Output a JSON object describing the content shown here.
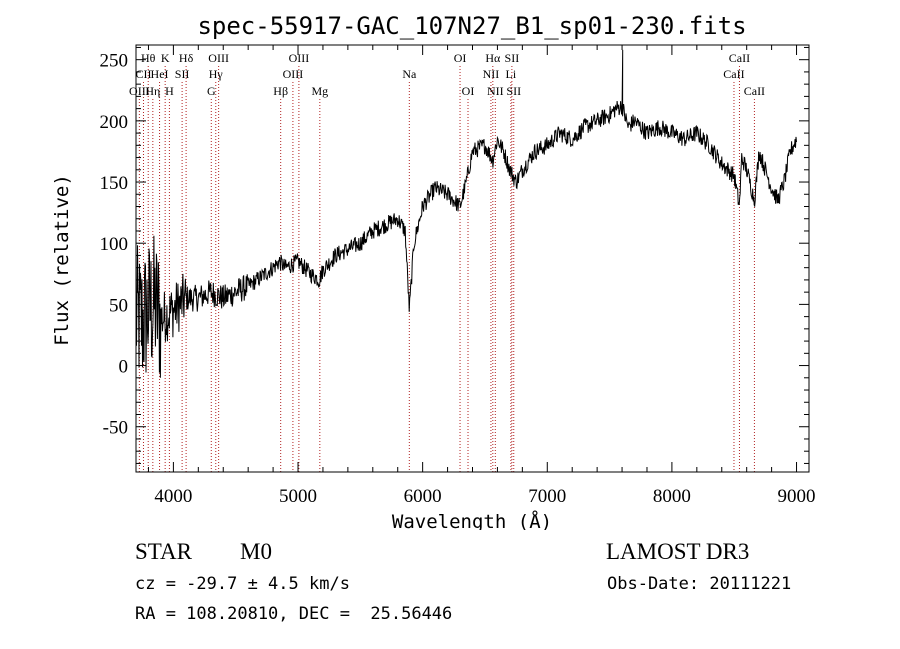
{
  "chart_data": {
    "type": "line",
    "title": "spec-55917-GAC_107N27_B1_sp01-230.fits",
    "xlabel": "Wavelength (Å)",
    "ylabel": "Flux (relative)",
    "xlim": [
      3700,
      9100
    ],
    "ylim": [
      -87,
      262
    ],
    "xticks": [
      4000,
      5000,
      6000,
      7000,
      8000,
      9000
    ],
    "yticks": [
      -50,
      0,
      50,
      100,
      150,
      200,
      250
    ],
    "spectrum_anchors": {
      "x": [
        3700,
        3750,
        3800,
        3850,
        3900,
        3950,
        4000,
        4050,
        4100,
        4200,
        4300,
        4400,
        4500,
        4600,
        4700,
        4800,
        4850,
        4900,
        5000,
        5100,
        5170,
        5200,
        5300,
        5400,
        5500,
        5600,
        5700,
        5800,
        5860,
        5893,
        5930,
        6000,
        6100,
        6200,
        6300,
        6350,
        6400,
        6500,
        6563,
        6600,
        6650,
        6700,
        6750,
        6800,
        6900,
        7000,
        7100,
        7200,
        7300,
        7400,
        7500,
        7550,
        7600,
        7650,
        7700,
        7800,
        7900,
        8000,
        8100,
        8200,
        8300,
        8400,
        8450,
        8500,
        8542,
        8560,
        8600,
        8662,
        8700,
        8750,
        8800,
        8850,
        8900,
        8950,
        9000
      ],
      "y": [
        40,
        35,
        45,
        50,
        38,
        42,
        45,
        50,
        55,
        55,
        60,
        55,
        60,
        65,
        72,
        80,
        85,
        80,
        85,
        75,
        70,
        78,
        90,
        95,
        100,
        110,
        115,
        120,
        110,
        45,
        100,
        130,
        145,
        140,
        130,
        150,
        175,
        180,
        168,
        185,
        175,
        160,
        150,
        160,
        175,
        180,
        190,
        185,
        195,
        200,
        205,
        210,
        212,
        195,
        200,
        190,
        195,
        190,
        185,
        190,
        180,
        165,
        160,
        155,
        130,
        170,
        160,
        135,
        175,
        160,
        145,
        135,
        150,
        175,
        185
      ]
    },
    "emission_lines": [
      {
        "label": "OIII",
        "wavelength": 3727,
        "row": 3
      },
      {
        "label": "Hθ",
        "wavelength": 3798,
        "row": 1
      },
      {
        "label": "CII",
        "wavelength": 3760,
        "row": 2
      },
      {
        "label": "Hη",
        "wavelength": 3835,
        "row": 3
      },
      {
        "label": "HeI",
        "wavelength": 3889,
        "row": 2
      },
      {
        "label": "K",
        "wavelength": 3934,
        "row": 1
      },
      {
        "label": "H",
        "wavelength": 3968,
        "row": 3
      },
      {
        "label": "SII",
        "wavelength": 4070,
        "row": 2
      },
      {
        "label": "Hδ",
        "wavelength": 4102,
        "row": 1
      },
      {
        "label": "OIII",
        "wavelength": 4363,
        "row": 1
      },
      {
        "label": "Hγ",
        "wavelength": 4340,
        "row": 2
      },
      {
        "label": "G",
        "wavelength": 4304,
        "row": 3
      },
      {
        "label": "Hβ",
        "wavelength": 4861,
        "row": 3
      },
      {
        "label": "OIII",
        "wavelength": 5007,
        "row": 1
      },
      {
        "label": "OIII",
        "wavelength": 4959,
        "row": 2
      },
      {
        "label": "Mg",
        "wavelength": 5175,
        "row": 3
      },
      {
        "label": "Na",
        "wavelength": 5893,
        "row": 2
      },
      {
        "label": "OI",
        "wavelength": 6300,
        "row": 1
      },
      {
        "label": "OI",
        "wavelength": 6364,
        "row": 3
      },
      {
        "label": "Hα",
        "wavelength": 6563,
        "row": 1
      },
      {
        "label": "NII",
        "wavelength": 6548,
        "row": 2
      },
      {
        "label": "NII",
        "wavelength": 6583,
        "row": 3
      },
      {
        "label": "SII",
        "wavelength": 6716,
        "row": 1
      },
      {
        "label": "Li",
        "wavelength": 6708,
        "row": 2
      },
      {
        "label": "SII",
        "wavelength": 6731,
        "row": 3
      },
      {
        "label": "CaII",
        "wavelength": 8542,
        "row": 1
      },
      {
        "label": "CaII",
        "wavelength": 8498,
        "row": 2
      },
      {
        "label": "CaII",
        "wavelength": 8662,
        "row": 3
      }
    ]
  },
  "info": {
    "class_label": "STAR",
    "subclass": "M0",
    "survey": "LAMOST DR3",
    "cz": "cz = -29.7 ± 4.5 km/s",
    "obs_date": "Obs-Date: 20111221",
    "coords": "RA = 108.20810, DEC =  25.56446"
  },
  "colors": {
    "line_marker": "#b22222",
    "spectrum": "#000000"
  }
}
